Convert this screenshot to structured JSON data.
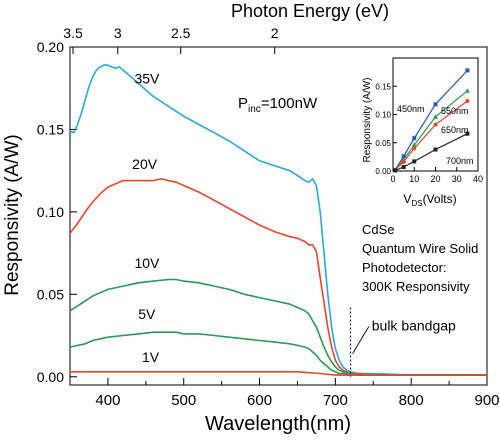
{
  "chart_data": [
    {
      "type": "line",
      "title": "",
      "xlabel": "Wavelength(nm)",
      "ylabel": "Responsivity (A/W)",
      "top_axis_label": "Photon Energy (eV)",
      "xlim": [
        350,
        900
      ],
      "ylim": [
        -0.005,
        0.2
      ],
      "x_ticks": [
        400,
        500,
        600,
        700,
        800,
        900
      ],
      "y_ticks": [
        0.0,
        0.05,
        0.1,
        0.15,
        0.2
      ],
      "y_tick_labels": [
        "0.00",
        "0.05",
        "0.10",
        "0.15",
        "0.20"
      ],
      "top_ticks": [
        {
          "label": "3.5",
          "wavelength": 354
        },
        {
          "label": "3",
          "wavelength": 413
        },
        {
          "label": "2.5",
          "wavelength": 496
        },
        {
          "label": "2",
          "wavelength": 620
        }
      ],
      "series": [
        {
          "name": "35V",
          "color": "#2aa9e0",
          "x": [
            350,
            355,
            360,
            365,
            370,
            375,
            380,
            385,
            390,
            395,
            400,
            405,
            410,
            415,
            420,
            430,
            440,
            450,
            460,
            470,
            480,
            490,
            500,
            520,
            540,
            560,
            580,
            600,
            620,
            640,
            650,
            660,
            665,
            670,
            675,
            680,
            685,
            690,
            695,
            700,
            705,
            710,
            715,
            720,
            730,
            750,
            800,
            900
          ],
          "y": [
            0.149,
            0.148,
            0.153,
            0.16,
            0.168,
            0.176,
            0.182,
            0.186,
            0.188,
            0.189,
            0.189,
            0.188,
            0.187,
            0.188,
            0.186,
            0.182,
            0.178,
            0.174,
            0.17,
            0.167,
            0.164,
            0.161,
            0.158,
            0.153,
            0.148,
            0.143,
            0.137,
            0.131,
            0.128,
            0.125,
            0.122,
            0.119,
            0.118,
            0.12,
            0.116,
            0.1,
            0.075,
            0.05,
            0.03,
            0.017,
            0.01,
            0.006,
            0.004,
            0.003,
            0.002,
            0.002,
            0.001,
            0.001
          ]
        },
        {
          "name": "20V",
          "color": "#e8452a",
          "x": [
            350,
            360,
            370,
            380,
            390,
            400,
            410,
            420,
            430,
            440,
            450,
            460,
            470,
            480,
            490,
            500,
            520,
            540,
            560,
            580,
            600,
            620,
            640,
            650,
            660,
            665,
            670,
            675,
            680,
            685,
            690,
            695,
            700,
            705,
            710,
            715,
            720,
            730,
            750,
            800,
            900
          ],
          "y": [
            0.087,
            0.093,
            0.1,
            0.106,
            0.111,
            0.115,
            0.117,
            0.119,
            0.119,
            0.119,
            0.119,
            0.119,
            0.12,
            0.119,
            0.118,
            0.116,
            0.112,
            0.107,
            0.102,
            0.097,
            0.092,
            0.088,
            0.085,
            0.084,
            0.082,
            0.08,
            0.08,
            0.076,
            0.06,
            0.045,
            0.03,
            0.018,
            0.01,
            0.006,
            0.004,
            0.003,
            0.002,
            0.002,
            0.001,
            0.001,
            0.001
          ]
        },
        {
          "name": "10V",
          "color": "#2a9a55",
          "x": [
            350,
            360,
            370,
            380,
            390,
            400,
            420,
            440,
            460,
            480,
            490,
            500,
            520,
            540,
            560,
            580,
            600,
            620,
            640,
            650,
            660,
            665,
            670,
            675,
            680,
            685,
            690,
            695,
            700,
            705,
            710,
            715,
            720,
            730,
            750,
            800,
            900
          ],
          "y": [
            0.04,
            0.043,
            0.046,
            0.049,
            0.051,
            0.053,
            0.055,
            0.057,
            0.058,
            0.059,
            0.059,
            0.058,
            0.057,
            0.055,
            0.053,
            0.05,
            0.048,
            0.046,
            0.044,
            0.042,
            0.04,
            0.038,
            0.034,
            0.03,
            0.024,
            0.018,
            0.013,
            0.009,
            0.006,
            0.004,
            0.003,
            0.002,
            0.002,
            0.001,
            0.001,
            0.001,
            0.001
          ]
        },
        {
          "name": "5V",
          "color": "#2a9a55",
          "x": [
            350,
            360,
            370,
            380,
            400,
            420,
            440,
            460,
            480,
            490,
            500,
            520,
            540,
            560,
            580,
            600,
            620,
            640,
            650,
            660,
            665,
            670,
            675,
            680,
            685,
            690,
            695,
            700,
            705,
            710,
            715,
            720,
            730,
            750,
            800,
            900
          ],
          "y": [
            0.018,
            0.019,
            0.02,
            0.022,
            0.024,
            0.025,
            0.026,
            0.027,
            0.027,
            0.027,
            0.026,
            0.026,
            0.025,
            0.024,
            0.023,
            0.022,
            0.021,
            0.02,
            0.019,
            0.018,
            0.017,
            0.015,
            0.013,
            0.01,
            0.008,
            0.006,
            0.004,
            0.003,
            0.002,
            0.002,
            0.001,
            0.001,
            0.001,
            0.001,
            0.001,
            0.001
          ]
        },
        {
          "name": "1V",
          "color": "#e8452a",
          "x": [
            350,
            400,
            450,
            500,
            550,
            600,
            650,
            680,
            700,
            720,
            750,
            800,
            900
          ],
          "y": [
            0.003,
            0.003,
            0.003,
            0.003,
            0.003,
            0.003,
            0.003,
            0.002,
            0.001,
            0.001,
            0.001,
            0.001,
            0.001
          ]
        }
      ],
      "annotations": [
        {
          "text": "35V",
          "x": 435,
          "y": 0.178
        },
        {
          "text": "20V",
          "x": 432,
          "y": 0.126
        },
        {
          "text": "10V",
          "x": 435,
          "y": 0.066
        },
        {
          "text": "5V",
          "x": 440,
          "y": 0.035
        },
        {
          "text": "1V",
          "x": 445,
          "y": 0.009
        },
        {
          "text": "bulk bandgap",
          "x": 748,
          "y": 0.028,
          "marker_x": 720
        }
      ],
      "power_label": {
        "text": "P",
        "subscript": "inc",
        "rest": "=100nW"
      },
      "description_lines": [
        "CdSe",
        "Quantum Wire Solid",
        "Photodetector:",
        "300K Responsivity"
      ]
    },
    {
      "type": "line",
      "title": "",
      "xlabel_prefix": "V",
      "xlabel_subscript": "DS",
      "xlabel_suffix": "(Volts)",
      "ylabel": "Responsivity (A/W)",
      "xlim": [
        0,
        40
      ],
      "ylim": [
        0,
        0.2
      ],
      "x_ticks": [
        0,
        10,
        20,
        30,
        40
      ],
      "y_ticks": [
        0.0,
        0.05,
        0.1,
        0.15
      ],
      "y_tick_labels": [
        "0.00",
        "0.05",
        "0.10",
        "0.15"
      ],
      "series": [
        {
          "name": "450nm",
          "color": "#2b50c8",
          "marker": "square",
          "x": [
            1,
            5,
            10,
            20,
            35
          ],
          "y": [
            0.002,
            0.026,
            0.058,
            0.118,
            0.178
          ]
        },
        {
          "name": "550nm",
          "color": "#2a9a55",
          "marker": "triangle",
          "x": [
            1,
            5,
            10,
            20,
            35
          ],
          "y": [
            0.002,
            0.02,
            0.046,
            0.096,
            0.142
          ]
        },
        {
          "name": "650nm",
          "color": "#e8452a",
          "marker": "circle",
          "x": [
            1,
            5,
            10,
            20,
            35
          ],
          "y": [
            0.002,
            0.016,
            0.04,
            0.082,
            0.124
          ]
        },
        {
          "name": "700nm",
          "color": "#222222",
          "marker": "square",
          "x": [
            1,
            5,
            10,
            20,
            35
          ],
          "y": [
            0.001,
            0.007,
            0.017,
            0.038,
            0.066
          ]
        }
      ]
    }
  ]
}
